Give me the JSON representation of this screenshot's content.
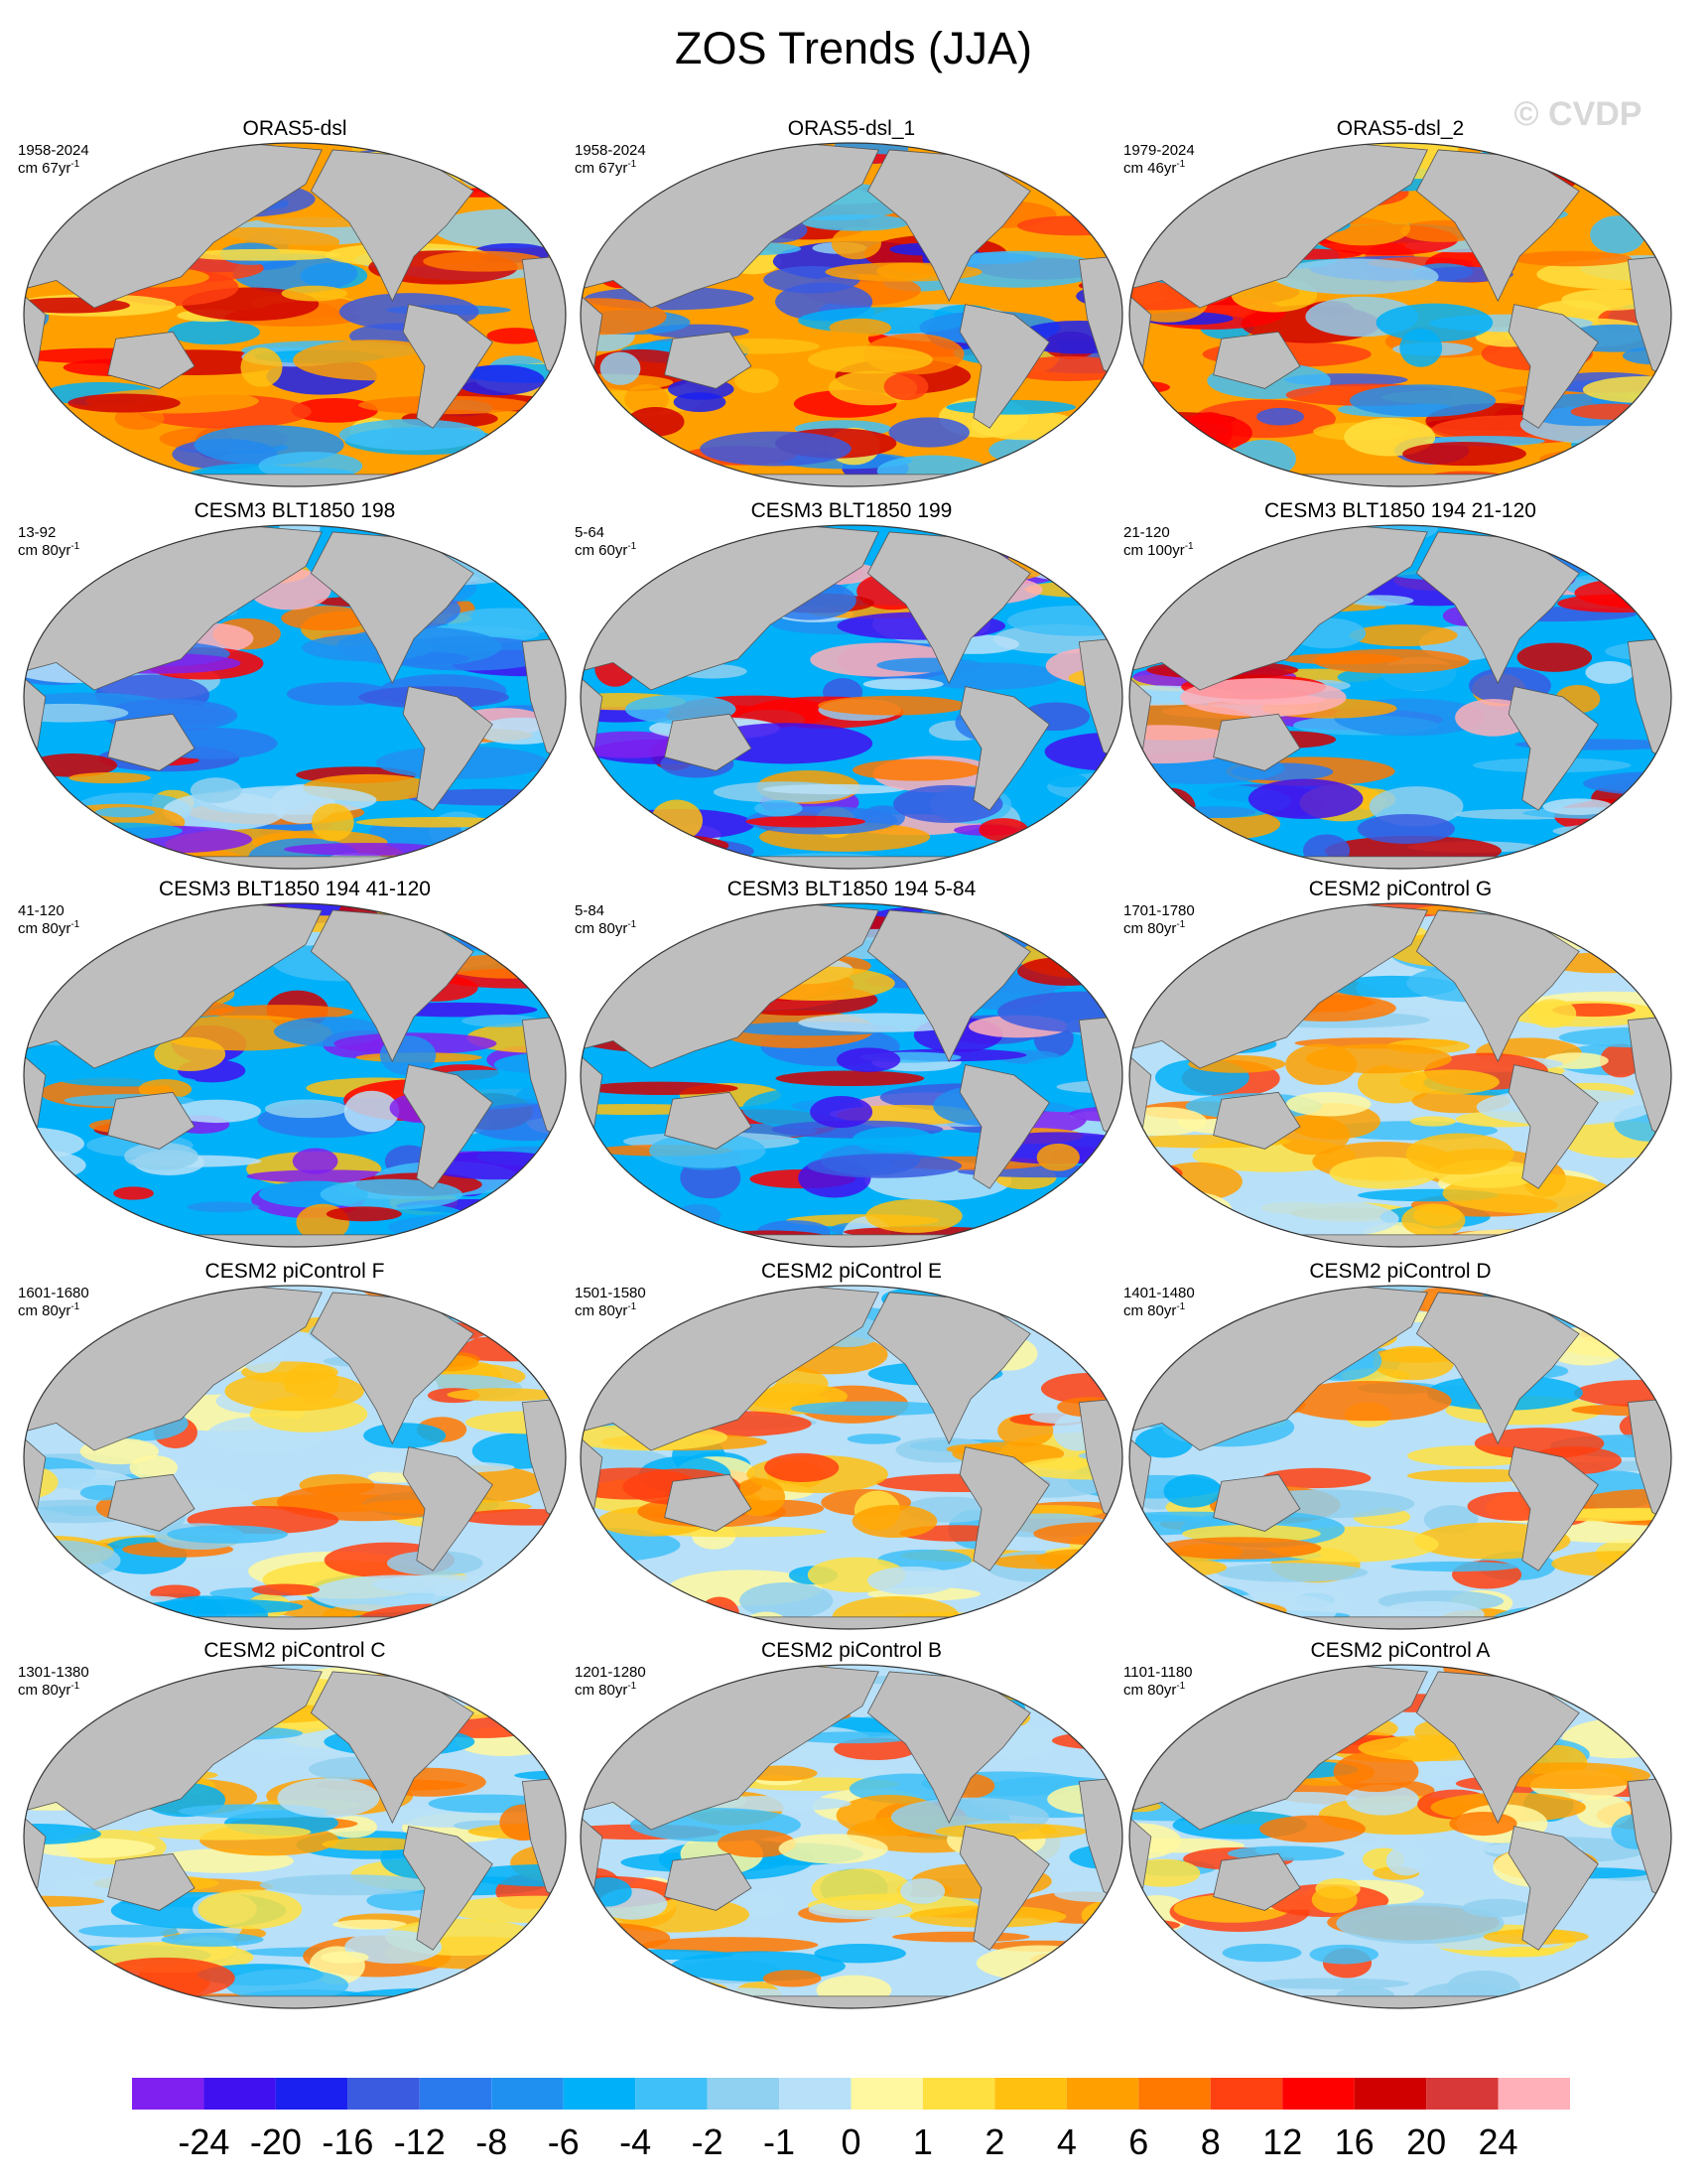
{
  "header": {
    "title": "ZOS Trends (JJA)",
    "watermark": "© CVDP"
  },
  "panels": [
    {
      "title": "ORAS5-dsl",
      "period": "1958-2024",
      "units": "cm 67yr",
      "units_sup": "-1"
    },
    {
      "title": "ORAS5-dsl_1",
      "period": "1958-2024",
      "units": "cm 67yr",
      "units_sup": "-1"
    },
    {
      "title": "ORAS5-dsl_2",
      "period": "1979-2024",
      "units": "cm 46yr",
      "units_sup": "-1"
    },
    {
      "title": "CESM3 BLT1850 198",
      "period": "13-92",
      "units": "cm 80yr",
      "units_sup": "-1"
    },
    {
      "title": "CESM3 BLT1850 199",
      "period": "5-64",
      "units": "cm 60yr",
      "units_sup": "-1"
    },
    {
      "title": "CESM3 BLT1850 194 21-120",
      "period": "21-120",
      "units": "cm 100yr",
      "units_sup": "-1"
    },
    {
      "title": "CESM3 BLT1850 194 41-120",
      "period": "41-120",
      "units": "cm 80yr",
      "units_sup": "-1"
    },
    {
      "title": "CESM3 BLT1850 194 5-84",
      "period": "5-84",
      "units": "cm 80yr",
      "units_sup": "-1"
    },
    {
      "title": "CESM2 piControl G",
      "period": "1701-1780",
      "units": "cm 80yr",
      "units_sup": "-1"
    },
    {
      "title": "CESM2 piControl F",
      "period": "1601-1680",
      "units": "cm 80yr",
      "units_sup": "-1"
    },
    {
      "title": "CESM2 piControl E",
      "period": "1501-1580",
      "units": "cm 80yr",
      "units_sup": "-1"
    },
    {
      "title": "CESM2 piControl D",
      "period": "1401-1480",
      "units": "cm 80yr",
      "units_sup": "-1"
    },
    {
      "title": "CESM2 piControl C",
      "period": "1301-1380",
      "units": "cm 80yr",
      "units_sup": "-1"
    },
    {
      "title": "CESM2 piControl B",
      "period": "1201-1280",
      "units": "cm 80yr",
      "units_sup": "-1"
    },
    {
      "title": "CESM2 piControl A",
      "period": "1101-1180",
      "units": "cm 80yr",
      "units_sup": "-1"
    }
  ],
  "colorbar": {
    "levels": [
      -24,
      -20,
      -16,
      -12,
      -8,
      -6,
      -4,
      -2,
      -1,
      0,
      1,
      2,
      4,
      6,
      8,
      12,
      16,
      20,
      24
    ],
    "colors": [
      "#8020f0",
      "#4010f0",
      "#1a20f0",
      "#3a5ae0",
      "#2a7aee",
      "#2090f0",
      "#00b0f8",
      "#40c0f8",
      "#90d0f0",
      "#b8e0f8",
      "#fff8a0",
      "#ffe040",
      "#ffc010",
      "#ffa000",
      "#ff7800",
      "#ff4010",
      "#ff0000",
      "#d00000",
      "#d83838",
      "#ffb0b8"
    ]
  }
}
